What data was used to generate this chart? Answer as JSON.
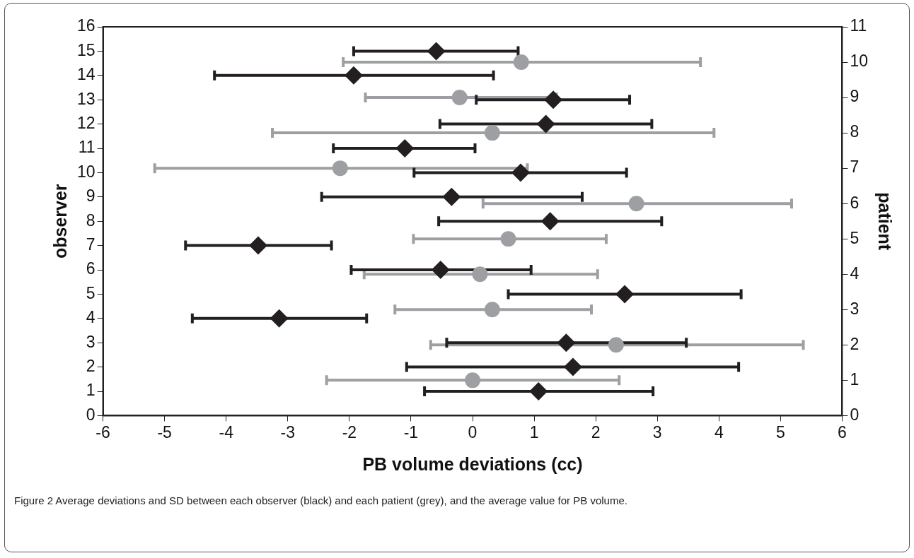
{
  "chart_data": {
    "type": "scatter",
    "xlabel": "PB volume deviations (cc)",
    "ylabel": "observer",
    "y2label": "patient",
    "xlim": [
      -6,
      6
    ],
    "xticks": [
      -6,
      -5,
      -4,
      -3,
      -2,
      -1,
      0,
      1,
      2,
      3,
      4,
      5,
      6
    ],
    "ylim": [
      0,
      16
    ],
    "yticks": [
      0,
      1,
      2,
      3,
      4,
      5,
      6,
      7,
      8,
      9,
      10,
      11,
      12,
      13,
      14,
      15,
      16
    ],
    "y2lim": [
      0,
      11
    ],
    "y2ticks": [
      0,
      1,
      2,
      3,
      4,
      5,
      6,
      7,
      8,
      9,
      10,
      11
    ],
    "grid": false,
    "legend": false,
    "series": [
      {
        "type": "scatter",
        "axis": "y2",
        "color": "#9d9fa2",
        "marker": "circle",
        "x": [
          0.0,
          2.33,
          0.32,
          0.12,
          0.58,
          2.66,
          -2.15,
          0.32,
          -0.21,
          0.79
        ],
        "values": [
          1,
          2,
          3,
          4,
          5,
          6,
          7,
          8,
          9,
          10
        ],
        "xerrors": [
          [
            -2.37,
            2.38
          ],
          [
            -0.68,
            5.37
          ],
          [
            -1.26,
            1.93
          ],
          [
            -1.76,
            2.03
          ],
          [
            -0.96,
            2.17
          ],
          [
            0.17,
            5.18
          ],
          [
            -5.16,
            0.89
          ],
          [
            -3.25,
            3.92
          ],
          [
            -1.74,
            1.36
          ],
          [
            -2.1,
            3.7
          ]
        ]
      },
      {
        "type": "scatter",
        "color": "#231f20",
        "marker": "diamond",
        "x": [
          1.07,
          1.63,
          1.52,
          -3.14,
          2.47,
          -0.52,
          -3.48,
          1.26,
          -0.34,
          0.78,
          -1.1,
          1.19,
          1.31,
          -1.93,
          -0.59
        ],
        "values": [
          1,
          2,
          3,
          4,
          5,
          6,
          7,
          8,
          9,
          10,
          11,
          12,
          13,
          14,
          15
        ],
        "xerrors": [
          [
            -0.78,
            2.93
          ],
          [
            -1.07,
            4.32
          ],
          [
            -0.42,
            3.47
          ],
          [
            -4.55,
            -1.72
          ],
          [
            0.58,
            4.36
          ],
          [
            -1.97,
            0.95
          ],
          [
            -4.66,
            -2.29
          ],
          [
            -0.55,
            3.07
          ],
          [
            -2.45,
            1.78
          ],
          [
            -0.95,
            2.5
          ],
          [
            -2.26,
            0.04
          ],
          [
            -0.53,
            2.91
          ],
          [
            0.06,
            2.55
          ],
          [
            -4.19,
            0.34
          ],
          [
            -1.93,
            0.74
          ]
        ]
      }
    ],
    "annotations": [
      "Figure 2 Average deviations and SD between each observer (black) and each patient (grey), and the average value for PB volume."
    ]
  }
}
